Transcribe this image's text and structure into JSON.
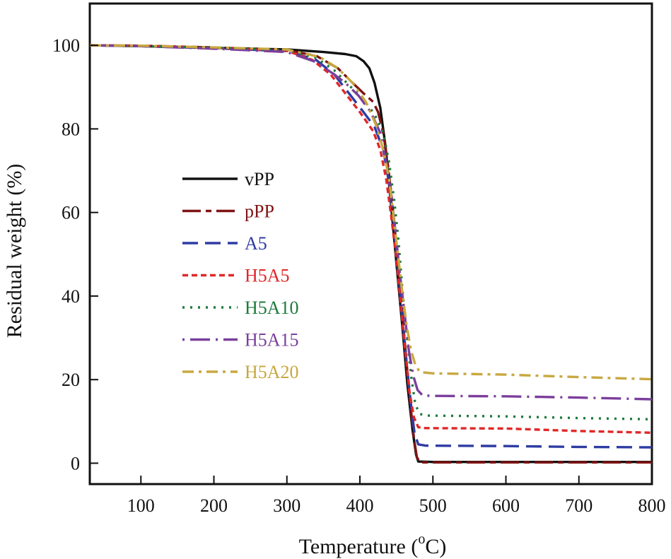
{
  "chart_data": {
    "type": "line",
    "xlabel": "Temperature (",
    "xlabel_unit_sup": "o",
    "xlabel_unit": "C)",
    "ylabel": "Residual weight (%)",
    "xlim": [
      30,
      800
    ],
    "ylim": [
      -5,
      110
    ],
    "xticks": [
      100,
      200,
      300,
      400,
      500,
      600,
      700,
      800
    ],
    "yticks": [
      0,
      20,
      40,
      60,
      80,
      100
    ],
    "grid": false,
    "legend_position": "center-left",
    "series": [
      {
        "name": "vPP",
        "color": "#111111",
        "dash": "solid",
        "width": 3.4,
        "points": [
          [
            30,
            100
          ],
          [
            100,
            99.8
          ],
          [
            200,
            99.4
          ],
          [
            300,
            99
          ],
          [
            350,
            98.4
          ],
          [
            380,
            97.9
          ],
          [
            395,
            97.4
          ],
          [
            405,
            96.2
          ],
          [
            413,
            94.5
          ],
          [
            420,
            91
          ],
          [
            428,
            85
          ],
          [
            435,
            76
          ],
          [
            442,
            63
          ],
          [
            450,
            48
          ],
          [
            458,
            33
          ],
          [
            465,
            19
          ],
          [
            472,
            8
          ],
          [
            477,
            2
          ],
          [
            480,
            0.4
          ],
          [
            500,
            0.3
          ],
          [
            600,
            0.3
          ],
          [
            700,
            0.3
          ],
          [
            800,
            0.3
          ]
        ]
      },
      {
        "name": "pPP",
        "color": "#7f1414",
        "dash": "long-dash",
        "width": 3.4,
        "points": [
          [
            30,
            100
          ],
          [
            100,
            99.9
          ],
          [
            200,
            99.5
          ],
          [
            300,
            98.8
          ],
          [
            340,
            97.5
          ],
          [
            370,
            94.5
          ],
          [
            390,
            91
          ],
          [
            405,
            88.5
          ],
          [
            418,
            86.5
          ],
          [
            425,
            84
          ],
          [
            432,
            79
          ],
          [
            438,
            72
          ],
          [
            444,
            63
          ],
          [
            450,
            52
          ],
          [
            456,
            40
          ],
          [
            462,
            28
          ],
          [
            468,
            16
          ],
          [
            474,
            6
          ],
          [
            478,
            1.5
          ],
          [
            482,
            0.2
          ],
          [
            500,
            0.2
          ],
          [
            600,
            0.2
          ],
          [
            700,
            0.2
          ],
          [
            800,
            0.2
          ]
        ]
      },
      {
        "name": "A5",
        "color": "#2e3ca3",
        "dash": "dash",
        "width": 3.4,
        "points": [
          [
            30,
            100
          ],
          [
            100,
            99.8
          ],
          [
            200,
            99.3
          ],
          [
            300,
            98.6
          ],
          [
            340,
            96.5
          ],
          [
            365,
            93
          ],
          [
            385,
            88.5
          ],
          [
            405,
            84
          ],
          [
            420,
            80.5
          ],
          [
            432,
            75
          ],
          [
            440,
            67
          ],
          [
            446,
            58
          ],
          [
            452,
            47
          ],
          [
            458,
            35
          ],
          [
            464,
            24
          ],
          [
            470,
            14
          ],
          [
            475,
            7
          ],
          [
            480,
            4.5
          ],
          [
            490,
            4.2
          ],
          [
            600,
            4.1
          ],
          [
            700,
            3.9
          ],
          [
            800,
            3.8
          ]
        ]
      },
      {
        "name": "H5A5",
        "color": "#e02828",
        "dash": "short-dash",
        "width": 3.4,
        "points": [
          [
            30,
            100
          ],
          [
            100,
            99.9
          ],
          [
            200,
            99.4
          ],
          [
            300,
            98.7
          ],
          [
            335,
            96.5
          ],
          [
            360,
            93
          ],
          [
            380,
            88.5
          ],
          [
            400,
            84
          ],
          [
            418,
            79.5
          ],
          [
            428,
            75
          ],
          [
            436,
            68
          ],
          [
            443,
            59
          ],
          [
            450,
            49
          ],
          [
            456,
            38
          ],
          [
            462,
            27
          ],
          [
            468,
            17
          ],
          [
            474,
            11
          ],
          [
            480,
            8.6
          ],
          [
            490,
            8.4
          ],
          [
            600,
            8.3
          ],
          [
            700,
            7.7
          ],
          [
            800,
            7.3
          ]
        ]
      },
      {
        "name": "H5A10",
        "color": "#1d7a3c",
        "dash": "dot",
        "width": 3.4,
        "points": [
          [
            30,
            100
          ],
          [
            100,
            99.8
          ],
          [
            200,
            99.4
          ],
          [
            300,
            98.9
          ],
          [
            340,
            97
          ],
          [
            365,
            94
          ],
          [
            385,
            90.5
          ],
          [
            405,
            87
          ],
          [
            420,
            83.5
          ],
          [
            432,
            79
          ],
          [
            440,
            72
          ],
          [
            447,
            63
          ],
          [
            453,
            53
          ],
          [
            458,
            42
          ],
          [
            464,
            31
          ],
          [
            470,
            21
          ],
          [
            476,
            14
          ],
          [
            482,
            11.8
          ],
          [
            490,
            11.4
          ],
          [
            600,
            11.2
          ],
          [
            700,
            10.8
          ],
          [
            800,
            10.5
          ]
        ]
      },
      {
        "name": "H5A15",
        "color": "#7b3f9c",
        "dash": "dash-dot",
        "width": 3.4,
        "points": [
          [
            30,
            100
          ],
          [
            100,
            99.8
          ],
          [
            200,
            99.2
          ],
          [
            300,
            98.4
          ],
          [
            340,
            96
          ],
          [
            365,
            93
          ],
          [
            380,
            91
          ],
          [
            398,
            88
          ],
          [
            415,
            84
          ],
          [
            428,
            79
          ],
          [
            436,
            72
          ],
          [
            443,
            64
          ],
          [
            449,
            55
          ],
          [
            455,
            45
          ],
          [
            461,
            36
          ],
          [
            467,
            27
          ],
          [
            473,
            21
          ],
          [
            479,
            17.5
          ],
          [
            486,
            16.2
          ],
          [
            500,
            16.1
          ],
          [
            600,
            16
          ],
          [
            700,
            15.7
          ],
          [
            800,
            15.3
          ]
        ]
      },
      {
        "name": "H5A20",
        "color": "#c8a840",
        "dash": "dash-dot-long",
        "width": 3.4,
        "points": [
          [
            30,
            100
          ],
          [
            100,
            99.9
          ],
          [
            200,
            99.5
          ],
          [
            300,
            99
          ],
          [
            345,
            97.2
          ],
          [
            370,
            94.5
          ],
          [
            390,
            91
          ],
          [
            408,
            86.5
          ],
          [
            422,
            81
          ],
          [
            432,
            75
          ],
          [
            440,
            68
          ],
          [
            446,
            59
          ],
          [
            452,
            50
          ],
          [
            458,
            41
          ],
          [
            464,
            33
          ],
          [
            470,
            27
          ],
          [
            476,
            23.5
          ],
          [
            482,
            21.8
          ],
          [
            500,
            21.5
          ],
          [
            600,
            21.2
          ],
          [
            700,
            20.6
          ],
          [
            800,
            20.1
          ]
        ]
      }
    ]
  }
}
